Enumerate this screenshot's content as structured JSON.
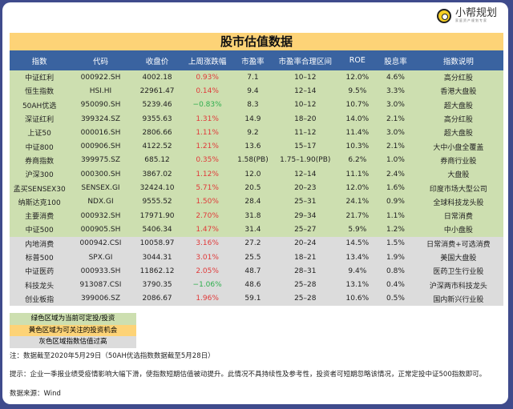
{
  "logo": {
    "name": "小帮规划",
    "tagline": "家庭资产规划专家"
  },
  "title": "股市估值数据",
  "columns": [
    "指数",
    "代码",
    "收盘价",
    "上周涨跌幅",
    "市盈率",
    "市盈率合理区间",
    "ROE",
    "股息率",
    "指数说明"
  ],
  "rows": [
    {
      "zone": "green",
      "cells": [
        "中证红利",
        "000922.SH",
        "4002.18",
        "0.93%",
        "7.1",
        "10–12",
        "12.0%",
        "4.6%",
        "高分红股"
      ]
    },
    {
      "zone": "green",
      "cells": [
        "恒生指数",
        "HSI.HI",
        "22961.47",
        "0.14%",
        "9.4",
        "12–14",
        "9.5%",
        "3.3%",
        "香港大盘股"
      ]
    },
    {
      "zone": "green",
      "cells": [
        "50AH优选",
        "950090.SH",
        "5239.46",
        "−0.83%",
        "8.3",
        "10–12",
        "10.7%",
        "3.0%",
        "超大盘股"
      ]
    },
    {
      "zone": "green",
      "cells": [
        "深证红利",
        "399324.SZ",
        "9355.63",
        "1.31%",
        "14.9",
        "18–20",
        "14.0%",
        "2.1%",
        "高分红股"
      ]
    },
    {
      "zone": "green",
      "cells": [
        "上证50",
        "000016.SH",
        "2806.66",
        "1.11%",
        "9.2",
        "11–12",
        "11.4%",
        "3.0%",
        "超大盘股"
      ]
    },
    {
      "zone": "green",
      "cells": [
        "中证800",
        "000906.SH",
        "4122.52",
        "1.21%",
        "13.6",
        "15–17",
        "10.3%",
        "2.1%",
        "大中小盘全覆盖"
      ]
    },
    {
      "zone": "green",
      "cells": [
        "券商指数",
        "399975.SZ",
        "685.12",
        "0.35%",
        "1.58(PB)",
        "1.75–1.90(PB)",
        "6.2%",
        "1.0%",
        "券商行业股"
      ]
    },
    {
      "zone": "green",
      "cells": [
        "沪深300",
        "000300.SH",
        "3867.02",
        "1.12%",
        "12.0",
        "12–14",
        "11.1%",
        "2.4%",
        "大盘股"
      ]
    },
    {
      "zone": "green",
      "cells": [
        "孟买SENSEX30",
        "SENSEX.GI",
        "32424.10",
        "5.71%",
        "20.5",
        "20–23",
        "12.0%",
        "1.6%",
        "印度市场大型公司"
      ]
    },
    {
      "zone": "green",
      "cells": [
        "纳斯达克100",
        "NDX.GI",
        "9555.52",
        "1.50%",
        "28.4",
        "25–31",
        "24.1%",
        "0.9%",
        "全球科技龙头股"
      ]
    },
    {
      "zone": "green",
      "cells": [
        "主要消费",
        "000932.SH",
        "17971.90",
        "2.70%",
        "31.8",
        "29–34",
        "21.7%",
        "1.1%",
        "日常消费"
      ]
    },
    {
      "zone": "green",
      "cells": [
        "中证500",
        "000905.SH",
        "5406.34",
        "1.47%",
        "31.4",
        "25–27",
        "5.9%",
        "1.2%",
        "中小盘股"
      ]
    },
    {
      "zone": "gray",
      "cells": [
        "内地消费",
        "000942.CSI",
        "10058.97",
        "3.16%",
        "27.2",
        "20–24",
        "14.5%",
        "1.5%",
        "日常消费+可选消费"
      ]
    },
    {
      "zone": "gray",
      "cells": [
        "标普500",
        "SPX.GI",
        "3044.31",
        "3.01%",
        "25.5",
        "18–21",
        "13.4%",
        "1.9%",
        "美国大盘股"
      ]
    },
    {
      "zone": "gray",
      "cells": [
        "中证医药",
        "000933.SH",
        "11862.12",
        "2.05%",
        "48.7",
        "28–31",
        "9.4%",
        "0.8%",
        "医药卫生行业股"
      ]
    },
    {
      "zone": "gray",
      "cells": [
        "科技龙头",
        "913087.CSI",
        "3790.35",
        "−1.06%",
        "48.6",
        "25–28",
        "13.1%",
        "0.4%",
        "沪深两市科技龙头"
      ]
    },
    {
      "zone": "gray",
      "cells": [
        "创业板指",
        "399006.SZ",
        "2086.67",
        "1.96%",
        "59.1",
        "25–28",
        "10.6%",
        "0.5%",
        "国内新兴行业股"
      ]
    }
  ],
  "legend": [
    {
      "label": "绿色区域为当前可定投/投资",
      "color": "#cddfb0"
    },
    {
      "label": "黄色区域为可关注的投资机会",
      "color": "#fdd377"
    },
    {
      "label": "灰色区域指数估值过高",
      "color": "#dcdcdc"
    }
  ],
  "note": "注：数据截至2020年5月29日（50AH优选指数数据截至5月28日）",
  "tip": "提示：企业一季报业绩受疫情影响大幅下滑，使指数短期估值被动提升。此情况不具持续性及参考性，投资者可短期忽略该情况，正常定投中证500指数即可。",
  "source": "数据来源：Wind"
}
